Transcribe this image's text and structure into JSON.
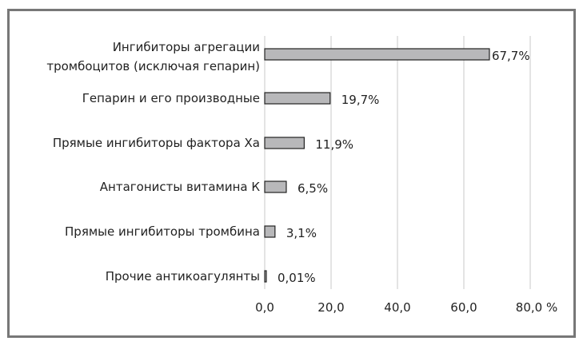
{
  "chart_data": {
    "type": "bar",
    "orientation": "horizontal",
    "categories": [
      [
        "Ингибиторы агрегации",
        "тромбоцитов (исключая гепарин)"
      ],
      [
        "Гепарин и его производные"
      ],
      [
        "Прямые ингибиторы фактора Ха"
      ],
      [
        "Антагонисты витамина К"
      ],
      [
        "Прямые ингибиторы тромбина"
      ],
      [
        "Прочие антикоагулянты"
      ]
    ],
    "values": [
      67.7,
      19.7,
      11.9,
      6.5,
      3.1,
      0.01
    ],
    "data_labels": [
      "67,7%",
      "19,7%",
      "11,9%",
      "6,5%",
      "3,1%",
      "0,01%"
    ],
    "xlim": [
      0,
      80
    ],
    "xticks": [
      0,
      20,
      40,
      60,
      80
    ],
    "xtick_labels": [
      "0,0",
      "20,0",
      "40,0",
      "60,0",
      "80,0 %"
    ],
    "grid": "vertical",
    "title": "",
    "xlabel": "",
    "ylabel": "",
    "bar_color": "#b8b8ba",
    "grid_color": "#c8c8c8"
  }
}
